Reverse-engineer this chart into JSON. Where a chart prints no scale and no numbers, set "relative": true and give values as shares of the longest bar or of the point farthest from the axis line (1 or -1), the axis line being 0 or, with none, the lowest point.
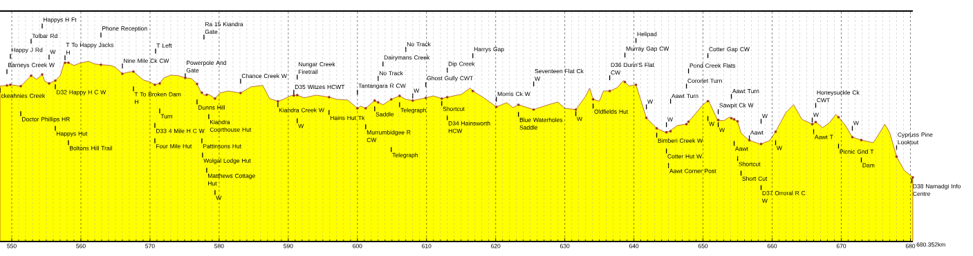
{
  "chart_data": {
    "type": "area",
    "relative": true,
    "grid": "x",
    "xlim": [
      548.3,
      680.352
    ],
    "xticks": [
      550,
      560,
      570,
      580,
      590,
      600,
      610,
      620,
      630,
      640,
      650,
      660,
      670,
      680
    ],
    "series": [
      {
        "color": "#ffff00",
        "x": [
          548.3,
          549.3,
          549.8,
          551.3,
          552.8,
          553.6,
          554.4,
          554.8,
          555.4,
          556.3,
          557.0,
          557.6,
          558.2,
          559.0,
          559.8,
          561.1,
          562.0,
          562.9,
          564.3,
          565.0,
          566.0,
          566.8,
          567.6,
          568.3,
          569.0,
          570.0,
          570.7,
          571.4,
          572.0,
          573.0,
          574.1,
          575.1,
          576.0,
          576.8,
          577.3,
          577.8,
          578.5,
          579.4,
          580.1,
          581.3,
          583.1,
          584.6,
          586.3,
          587.3,
          588.5,
          589.3,
          590.3,
          591.3,
          592.3,
          594.0,
          595.9,
          597.0,
          598.6,
          600.0,
          600.5,
          601.2,
          602.0,
          602.5,
          603.7,
          604.9,
          606.1,
          607.0,
          608.0,
          609.9,
          611.0,
          612.2,
          613.0,
          615.0,
          616.3,
          616.7,
          618.3,
          620.1,
          621.6,
          622.5,
          623.3,
          625.5,
          627.3,
          629.0,
          630.0,
          631.6,
          633.0,
          633.6,
          634.1,
          635.0,
          635.6,
          636.5,
          637.6,
          638.5,
          639.3,
          640.3,
          641.8,
          643.3,
          644.6,
          645.2,
          646.3,
          647.6,
          650.0,
          650.8,
          652.1,
          653.0,
          653.8,
          655.0,
          655.5,
          656.6,
          658.3,
          659.6,
          660.5,
          662.0,
          663.1,
          664.3,
          665.8,
          666.3,
          667.3,
          668.3,
          669.2,
          669.6,
          670.6,
          671.6,
          672.9,
          674.6,
          675.1,
          676.3,
          677.0,
          678.0,
          679.1,
          680.352
        ],
        "values": [
          0.862,
          0.866,
          0.87,
          0.862,
          0.92,
          0.9,
          0.927,
          0.889,
          0.877,
          0.893,
          0.92,
          0.992,
          0.992,
          0.977,
          0.989,
          1,
          0.985,
          0.981,
          0.977,
          0.966,
          0.931,
          0.939,
          0.943,
          0.92,
          0.897,
          0.885,
          0.87,
          0.877,
          0.908,
          0.923,
          0.92,
          0.908,
          0.904,
          0.874,
          0.835,
          0.812,
          0.816,
          0.793,
          0.824,
          0.835,
          0.824,
          0.858,
          0.866,
          0.793,
          0.778,
          0.789,
          0.808,
          0.812,
          0.797,
          0.812,
          0.801,
          0.789,
          0.785,
          0.739,
          0.751,
          0.739,
          0.766,
          0.782,
          0.759,
          0.789,
          0.808,
          0.789,
          0.782,
          0.797,
          0.808,
          0.793,
          0.801,
          0.816,
          0.851,
          0.835,
          0.797,
          0.747,
          0.77,
          0.743,
          0.759,
          0.732,
          0.755,
          0.774,
          0.739,
          0.732,
          0.805,
          0.851,
          0.789,
          0.778,
          0.835,
          0.835,
          0.854,
          0.893,
          0.862,
          0.87,
          0.686,
          0.628,
          0.605,
          0.613,
          0.644,
          0.651,
          0.759,
          0.782,
          0.674,
          0.67,
          0.69,
          0.667,
          0.602,
          0.563,
          0.54,
          0.559,
          0.609,
          0.716,
          0.759,
          0.678,
          0.651,
          0.663,
          0.632,
          0.659,
          0.705,
          0.69,
          0.644,
          0.579,
          0.563,
          0.548,
          0.575,
          0.651,
          0.605,
          0.471,
          0.395,
          0.356
        ]
      },
      {
        "type": "scatter",
        "color": "#993322",
        "marker": "circle",
        "x": [
          549.3,
          549.8,
          551.3,
          552.8,
          554.4,
          555.4,
          556.3,
          557.7,
          558.2,
          562.9,
          566.0,
          567.6,
          570.7,
          571.4,
          575.1,
          576.8,
          577.5,
          578.2,
          579.4,
          583.1,
          588.5,
          590.8,
          591.3,
          595.9,
          600.0,
          601.2,
          602.5,
          603.0,
          604.9,
          606.1,
          608.0,
          609.9,
          612.2,
          613.0,
          616.7,
          620.1,
          623.3,
          625.5,
          631.6,
          634.1,
          636.5,
          638.7,
          640.3,
          641.8,
          643.3,
          644.7,
          645.3,
          647.6,
          647.9,
          650.7,
          652.2,
          654.1,
          654.5,
          655.0,
          656.7,
          658.4,
          660.5,
          665.8,
          666.3,
          669.6,
          671.6,
          672.9,
          678.0,
          680.352
        ],
        "values": [
          0.866,
          0.87,
          0.862,
          0.92,
          0.927,
          0.877,
          0.893,
          0.992,
          0.992,
          0.981,
          0.931,
          0.943,
          0.87,
          0.877,
          0.908,
          0.874,
          0.826,
          0.814,
          0.793,
          0.824,
          0.778,
          0.81,
          0.812,
          0.801,
          0.739,
          0.739,
          0.782,
          0.772,
          0.789,
          0.808,
          0.782,
          0.797,
          0.793,
          0.801,
          0.835,
          0.747,
          0.759,
          0.732,
          0.732,
          0.789,
          0.835,
          0.885,
          0.87,
          0.686,
          0.628,
          0.606,
          0.612,
          0.651,
          0.665,
          0.779,
          0.674,
          0.684,
          0.678,
          0.667,
          0.562,
          0.541,
          0.609,
          0.651,
          0.663,
          0.69,
          0.579,
          0.563,
          0.471,
          0.356
        ]
      }
    ],
    "annotations": [
      "Happys H Ft",
      "Tolbar Rd",
      "Happy J Rd",
      "W",
      "T To Happy Jacks H",
      "Barneys Creek W",
      "D32 Happy H C W",
      "ckeahnies Creek",
      "Doctor Phillips HR",
      "Happys Hut",
      "Boltons Hill Trail",
      "Phone Reception",
      "Nine Mile Ck CW",
      "T Left",
      "T To Broken Dam H",
      "Turn",
      "D33 4 Mile H C W",
      "Four Mile Hut",
      "Ra 15 Kiandra Gate",
      "Powerpole And Gate",
      "Dunns Hill",
      "Kiandra Courthouse Hut",
      "Pattinsons Hut",
      "Wolgal Lodge Hut",
      "Matthews Cottage Hut",
      "W",
      "Chance Creek W",
      "Nungar Creek Firetrail",
      "D35 Witzes HCWT",
      "Kiandra Creek W",
      "W",
      "Hains Hut Tk",
      "Tantangara R CW",
      "Murrumbidgee R CW",
      "Saddle",
      "No Track",
      "Dairymans Creek",
      "No Track",
      "W",
      "Telegraph",
      "Telegraph",
      "Ghost Gully CWT",
      "Dip Creek",
      "Harrys Gap",
      "Shortcut",
      "D34 Hainsworth HCW",
      "Morris Ck W",
      "Blue Waterholes Saddle",
      "Seventeen Flat Ck W",
      "W",
      "Oldfields Hut",
      "D36 Dunn'S Flat CW",
      "Murray Gap CW",
      "Helipad",
      "W",
      "Bimberi Creek W",
      "W",
      "Cotter Hut W",
      "Aawt Corner Post",
      "Aawt Turn",
      "Coronet Turn",
      "Pond Creek Flats",
      "Cotter Gap CW",
      "W",
      "Sawpit Ck W",
      "W",
      "Aawt Turn",
      "Aawt",
      "W",
      "W",
      "Aawt",
      "Shortcut",
      "Short Cut",
      "D37 Orroral R C W",
      "Honeysuckle Ck CWT",
      "W",
      "Aawt T",
      "W",
      "Picnic Gnd T",
      "Dam",
      "Cypruss Pine Lookout",
      "D38 Namadgi Info Centre",
      "680.352km"
    ]
  }
}
